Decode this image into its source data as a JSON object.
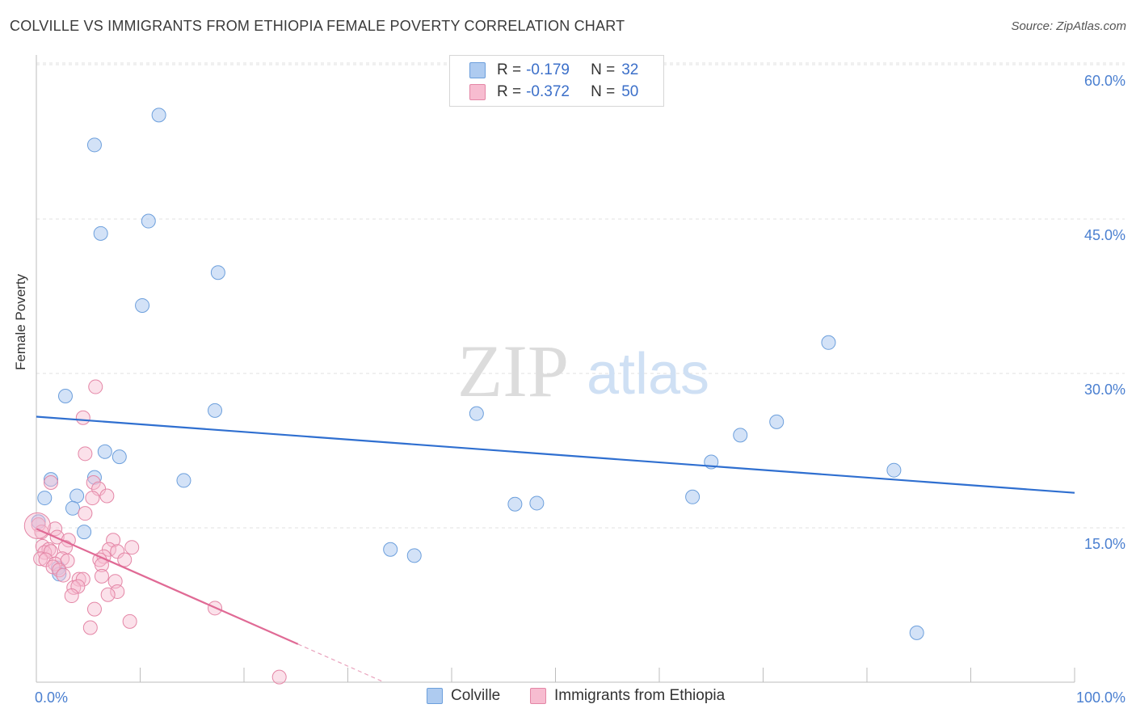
{
  "title": "COLVILLE VS IMMIGRANTS FROM ETHIOPIA FEMALE POVERTY CORRELATION CHART",
  "source": "Source: ZipAtlas.com",
  "watermark": {
    "zip": "ZIP",
    "atlas": "atlas"
  },
  "legend": {
    "r_label": "R =",
    "n_label": "N =",
    "series": [
      {
        "name": "Colville",
        "r": "-0.179",
        "n": "32",
        "fill": "#aecbf0",
        "stroke": "#6c9fdc"
      },
      {
        "name": "Immigrants from Ethiopia",
        "r": "-0.372",
        "n": "50",
        "fill": "#f7bcd0",
        "stroke": "#e486a6"
      }
    ]
  },
  "chart_data": {
    "type": "scatter",
    "title": "COLVILLE VS IMMIGRANTS FROM ETHIOPIA FEMALE POVERTY CORRELATION CHART",
    "xlabel": "",
    "ylabel": "Female Poverty",
    "xlim": [
      0,
      100
    ],
    "ylim": [
      0,
      60
    ],
    "x_tick_labels": [
      "0.0%",
      "100.0%"
    ],
    "y_ticks": [
      15,
      30,
      45,
      60
    ],
    "y_tick_labels": [
      "15.0%",
      "30.0%",
      "45.0%",
      "60.0%"
    ],
    "grid": "horizontal dashed",
    "series": [
      {
        "name": "Colville",
        "color": "#5b8fd6",
        "trend": {
          "x": [
            0,
            100
          ],
          "y": [
            25.8,
            18.4
          ]
        },
        "points": [
          [
            11.8,
            55.1
          ],
          [
            5.6,
            52.2
          ],
          [
            10.8,
            44.8
          ],
          [
            6.2,
            43.6
          ],
          [
            17.5,
            39.8
          ],
          [
            10.2,
            36.6
          ],
          [
            76.3,
            33.0
          ],
          [
            2.8,
            27.8
          ],
          [
            17.2,
            26.4
          ],
          [
            42.4,
            26.1
          ],
          [
            71.3,
            25.3
          ],
          [
            67.8,
            24.0
          ],
          [
            6.6,
            22.4
          ],
          [
            8.0,
            21.9
          ],
          [
            65.0,
            21.4
          ],
          [
            82.6,
            20.6
          ],
          [
            1.4,
            19.7
          ],
          [
            5.6,
            19.9
          ],
          [
            14.2,
            19.6
          ],
          [
            0.8,
            17.9
          ],
          [
            3.9,
            18.1
          ],
          [
            3.5,
            16.9
          ],
          [
            63.2,
            18.0
          ],
          [
            46.1,
            17.3
          ],
          [
            48.2,
            17.4
          ],
          [
            0.2,
            15.6
          ],
          [
            4.6,
            14.6
          ],
          [
            34.1,
            12.9
          ],
          [
            36.4,
            12.3
          ],
          [
            2.1,
            11.1
          ],
          [
            2.2,
            10.5
          ],
          [
            84.8,
            4.8
          ]
        ]
      },
      {
        "name": "Immigrants from Ethiopia",
        "color": "#e06a95",
        "trend": {
          "x": [
            0,
            25.2
          ],
          "y": [
            14.9,
            3.7
          ]
        },
        "trend_extension": {
          "x": [
            25.2,
            33.5
          ],
          "y": [
            3.7,
            0
          ]
        },
        "points": [
          [
            0.2,
            15.3
          ],
          [
            0.5,
            14.6
          ],
          [
            1.8,
            14.9
          ],
          [
            2.0,
            14.1
          ],
          [
            3.1,
            13.8
          ],
          [
            0.6,
            13.2
          ],
          [
            2.8,
            13.1
          ],
          [
            1.2,
            12.9
          ],
          [
            0.8,
            12.6
          ],
          [
            1.4,
            12.7
          ],
          [
            0.4,
            12.0
          ],
          [
            0.9,
            11.9
          ],
          [
            2.5,
            12.0
          ],
          [
            3.0,
            11.8
          ],
          [
            1.8,
            11.5
          ],
          [
            1.6,
            11.2
          ],
          [
            2.2,
            10.9
          ],
          [
            2.6,
            10.4
          ],
          [
            4.1,
            10.0
          ],
          [
            4.5,
            10.0
          ],
          [
            3.6,
            9.2
          ],
          [
            4.0,
            9.3
          ],
          [
            3.4,
            8.4
          ],
          [
            5.7,
            28.7
          ],
          [
            4.5,
            25.7
          ],
          [
            4.7,
            22.2
          ],
          [
            1.4,
            19.4
          ],
          [
            5.5,
            19.4
          ],
          [
            6.0,
            18.8
          ],
          [
            5.4,
            17.9
          ],
          [
            6.8,
            18.1
          ],
          [
            4.7,
            16.4
          ],
          [
            7.4,
            13.8
          ],
          [
            9.2,
            13.1
          ],
          [
            7.0,
            12.9
          ],
          [
            7.8,
            12.7
          ],
          [
            6.5,
            12.2
          ],
          [
            6.1,
            11.9
          ],
          [
            8.5,
            11.9
          ],
          [
            6.3,
            11.4
          ],
          [
            6.3,
            10.3
          ],
          [
            7.6,
            9.8
          ],
          [
            7.8,
            8.8
          ],
          [
            6.9,
            8.5
          ],
          [
            5.6,
            7.1
          ],
          [
            17.2,
            7.2
          ],
          [
            9.0,
            5.9
          ],
          [
            5.2,
            5.3
          ],
          [
            23.4,
            0.5
          ],
          [
            0.1,
            15.2
          ]
        ]
      }
    ]
  }
}
